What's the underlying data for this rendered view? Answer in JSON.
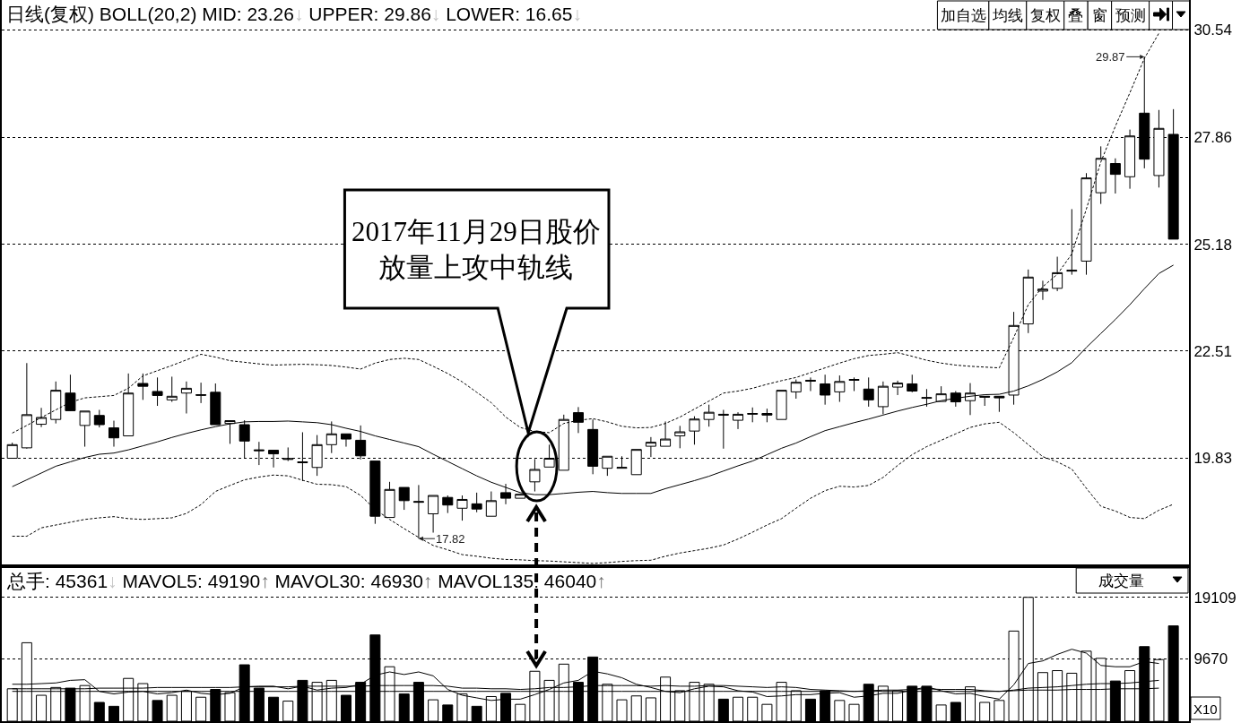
{
  "chart_data": [
    {
      "type": "candlestick",
      "categories": [
        null,
        null,
        null,
        null,
        null,
        null,
        null,
        null,
        null,
        null,
        null,
        null,
        null,
        null,
        null,
        null,
        null,
        null,
        null,
        null,
        null,
        null,
        null,
        null,
        null,
        null,
        null,
        null,
        null,
        null,
        null,
        null,
        null,
        null,
        null,
        null,
        null,
        null,
        null,
        null,
        null,
        null,
        null,
        null,
        null,
        null,
        null,
        null,
        null,
        null,
        null,
        null,
        null,
        null,
        null,
        null,
        null,
        null,
        null,
        null,
        null,
        null,
        null,
        null,
        null,
        null,
        null,
        null,
        null,
        null,
        null,
        null,
        null,
        null,
        null,
        null,
        null,
        null,
        null,
        null,
        null
      ],
      "ohlc": [
        [
          19.83,
          20.22,
          19.83,
          20.17
        ],
        [
          20.09,
          22.21,
          20.07,
          20.92
        ],
        [
          20.68,
          21.09,
          20.61,
          20.85
        ],
        [
          20.8,
          21.75,
          20.7,
          21.53
        ],
        [
          21.46,
          21.92,
          21.01,
          21.02
        ],
        [
          20.65,
          21.01,
          20.12,
          21.01
        ],
        [
          20.9,
          21.04,
          20.6,
          20.67
        ],
        [
          20.59,
          20.77,
          20.12,
          20.34
        ],
        [
          20.39,
          21.95,
          20.39,
          21.46
        ],
        [
          21.7,
          21.95,
          21.29,
          21.63
        ],
        [
          21.5,
          21.85,
          21.14,
          21.4
        ],
        [
          21.29,
          21.87,
          21.24,
          21.38
        ],
        [
          21.46,
          21.75,
          20.95,
          21.58
        ],
        [
          21.4,
          21.72,
          21.21,
          21.42
        ],
        [
          21.48,
          21.7,
          20.67,
          20.67
        ],
        [
          20.7,
          20.77,
          20.19,
          20.77
        ],
        [
          20.67,
          20.78,
          19.83,
          20.26
        ],
        [
          20.04,
          20.24,
          19.66,
          20.02
        ],
        [
          20.03,
          20.03,
          19.6,
          19.94
        ],
        [
          19.8,
          20.1,
          19.76,
          19.82
        ],
        [
          19.74,
          20.48,
          19.26,
          19.72
        ],
        [
          19.6,
          20.41,
          19.39,
          20.17
        ],
        [
          20.17,
          20.75,
          19.96,
          20.44
        ],
        [
          20.44,
          20.44,
          20.12,
          20.31
        ],
        [
          20.28,
          20.65,
          19.8,
          19.89
        ],
        [
          19.76,
          19.76,
          18.19,
          18.38
        ],
        [
          18.35,
          19.24,
          18.35,
          19.05
        ],
        [
          19.1,
          19.1,
          18.54,
          18.77
        ],
        [
          18.75,
          19.16,
          17.82,
          18.73
        ],
        [
          18.44,
          18.9,
          17.97,
          18.9
        ],
        [
          18.85,
          18.9,
          18.46,
          18.66
        ],
        [
          18.58,
          18.9,
          18.27,
          18.8
        ],
        [
          18.69,
          18.97,
          18.48,
          18.56
        ],
        [
          18.38,
          19.0,
          18.38,
          18.77
        ],
        [
          18.97,
          19.19,
          18.68,
          18.83
        ],
        [
          18.83,
          18.93,
          18.83,
          18.93
        ],
        [
          19.24,
          19.81,
          19.0,
          19.55
        ],
        [
          19.61,
          20.17,
          19.61,
          19.83
        ],
        [
          19.53,
          20.92,
          19.53,
          20.8
        ],
        [
          20.97,
          21.11,
          20.46,
          20.73
        ],
        [
          20.55,
          20.8,
          19.43,
          19.63
        ],
        [
          19.58,
          19.88,
          19.39,
          19.88
        ],
        [
          19.58,
          19.88,
          19.58,
          19.6
        ],
        [
          19.42,
          20.05,
          19.42,
          20.05
        ],
        [
          20.13,
          20.36,
          19.86,
          20.23
        ],
        [
          20.13,
          20.75,
          20.13,
          20.31
        ],
        [
          20.39,
          20.64,
          20.08,
          20.49
        ],
        [
          20.51,
          20.88,
          20.17,
          20.81
        ],
        [
          20.8,
          21.17,
          20.62,
          20.98
        ],
        [
          20.93,
          21.04,
          20.07,
          20.91
        ],
        [
          20.78,
          20.98,
          20.56,
          20.93
        ],
        [
          20.93,
          21.1,
          20.73,
          20.95
        ],
        [
          20.95,
          21.07,
          20.73,
          20.91
        ],
        [
          20.8,
          21.53,
          20.8,
          21.53
        ],
        [
          21.49,
          21.8,
          21.32,
          21.73
        ],
        [
          21.78,
          21.85,
          21.51,
          21.76
        ],
        [
          21.69,
          21.92,
          21.17,
          21.41
        ],
        [
          21.49,
          21.9,
          21.24,
          21.75
        ],
        [
          21.78,
          21.85,
          21.51,
          21.8
        ],
        [
          21.56,
          21.85,
          21.12,
          21.29
        ],
        [
          21.12,
          21.75,
          20.93,
          21.63
        ],
        [
          21.61,
          21.77,
          21.41,
          21.71
        ],
        [
          21.69,
          21.92,
          21.48,
          21.51
        ],
        [
          21.35,
          21.56,
          21.12,
          21.33
        ],
        [
          21.25,
          21.63,
          21.25,
          21.44
        ],
        [
          21.46,
          21.51,
          21.12,
          21.24
        ],
        [
          21.27,
          21.71,
          20.91,
          21.46
        ],
        [
          21.38,
          21.38,
          21.14,
          21.36
        ],
        [
          21.38,
          21.38,
          20.99,
          21.34
        ],
        [
          21.41,
          23.49,
          21.17,
          23.15
        ],
        [
          23.19,
          24.55,
          22.96,
          24.36
        ],
        [
          24.01,
          24.27,
          23.79,
          24.06
        ],
        [
          24.08,
          24.87,
          24.01,
          24.47
        ],
        [
          24.51,
          26.06,
          24.42,
          24.53
        ],
        [
          24.76,
          26.96,
          24.42,
          26.84
        ],
        [
          26.47,
          27.63,
          26.19,
          27.33
        ],
        [
          27.2,
          27.33,
          26.45,
          26.93
        ],
        [
          26.87,
          28.05,
          26.57,
          27.89
        ],
        [
          28.46,
          29.87,
          27.08,
          27.31
        ],
        [
          26.9,
          28.54,
          26.6,
          28.08
        ],
        [
          27.93,
          28.56,
          25.31,
          25.31
        ]
      ],
      "series": [
        {
          "type": "line",
          "color": "#000000",
          "line_style": "solid",
          "values": [
            19.12,
            19.29,
            19.46,
            19.63,
            19.74,
            19.85,
            19.93,
            19.96,
            20.04,
            20.14,
            20.24,
            20.35,
            20.45,
            20.54,
            20.62,
            20.69,
            20.74,
            20.75,
            20.75,
            20.76,
            20.74,
            20.72,
            20.67,
            20.58,
            20.5,
            20.39,
            20.3,
            20.21,
            20.12,
            19.93,
            19.75,
            19.57,
            19.39,
            19.23,
            19.1,
            18.97,
            18.92,
            18.92,
            18.95,
            18.98,
            19.0,
            18.97,
            18.95,
            18.95,
            18.95,
            19.07,
            19.17,
            19.27,
            19.38,
            19.51,
            19.64,
            19.76,
            19.92,
            20.08,
            20.21,
            20.37,
            20.52,
            20.62,
            20.72,
            20.81,
            20.91,
            21.01,
            21.1,
            21.18,
            21.27,
            21.33,
            21.38,
            21.42,
            21.43,
            21.51,
            21.64,
            21.8,
            21.99,
            22.22,
            22.6,
            22.95,
            23.3,
            23.67,
            24.07,
            24.45,
            24.66
          ]
        },
        {
          "type": "line",
          "color": "#000000",
          "line_style": "dashed",
          "values": [
            20.46,
            20.65,
            20.85,
            21.04,
            21.23,
            21.34,
            21.37,
            21.4,
            21.58,
            21.89,
            22.02,
            22.15,
            22.29,
            22.43,
            22.36,
            22.27,
            22.23,
            22.19,
            22.16,
            22.17,
            22.18,
            22.17,
            22.15,
            22.11,
            22.06,
            22.21,
            22.3,
            22.33,
            22.3,
            22.13,
            21.95,
            21.74,
            21.48,
            21.22,
            20.86,
            20.6,
            20.5,
            20.47,
            20.7,
            20.78,
            20.82,
            20.74,
            20.63,
            20.59,
            20.6,
            20.7,
            20.86,
            21.06,
            21.26,
            21.46,
            21.51,
            21.58,
            21.68,
            21.77,
            21.85,
            21.97,
            22.09,
            22.21,
            22.32,
            22.4,
            22.43,
            22.47,
            22.38,
            22.28,
            22.21,
            22.16,
            22.13,
            22.11,
            22.09,
            22.85,
            23.67,
            24.12,
            24.43,
            24.94,
            26.06,
            27.24,
            28.13,
            28.97,
            29.83,
            30.46,
            null
          ]
        },
        {
          "type": "line",
          "color": "#000000",
          "line_style": "dashed",
          "values": [
            17.88,
            17.88,
            18.09,
            18.16,
            18.23,
            18.3,
            18.34,
            18.37,
            18.32,
            18.3,
            18.32,
            18.34,
            18.45,
            18.67,
            19.0,
            19.15,
            19.29,
            19.36,
            19.41,
            19.39,
            19.28,
            19.18,
            19.17,
            19.12,
            18.9,
            18.55,
            18.3,
            18.07,
            17.85,
            17.65,
            17.54,
            17.42,
            17.38,
            17.33,
            17.3,
            17.29,
            17.27,
            17.26,
            17.24,
            17.22,
            17.2,
            17.22,
            17.25,
            17.27,
            17.28,
            17.38,
            17.46,
            17.52,
            17.58,
            17.66,
            17.81,
            17.98,
            18.16,
            18.32,
            18.58,
            18.83,
            19.02,
            19.13,
            19.11,
            19.15,
            19.35,
            19.65,
            19.92,
            20.12,
            20.28,
            20.44,
            20.6,
            20.69,
            20.73,
            20.47,
            20.17,
            19.87,
            19.74,
            19.56,
            19.08,
            18.63,
            18.51,
            18.35,
            18.32,
            18.53,
            18.68
          ]
        }
      ],
      "ylim": [
        17.13,
        31.29
      ],
      "yticks": [
        19.83,
        22.51,
        25.18,
        27.86,
        30.54
      ],
      "grid": "y",
      "tick_labels": "y",
      "annotations": [
        "日线(复权) BOLL(20,2) MID: 23.26↓ UPPER: 29.86↓ LOWER: 16.65↓",
        "2017年11月29日股价放量上攻中轨线",
        "29.87",
        "17.82",
        "加自选",
        "均线",
        "复权",
        "叠",
        "窗",
        "预测"
      ]
    },
    {
      "type": "bar",
      "categories": [
        null,
        null,
        null,
        null,
        null,
        null,
        null,
        null,
        null,
        null,
        null,
        null,
        null,
        null,
        null,
        null,
        null,
        null,
        null,
        null,
        null,
        null,
        null,
        null,
        null,
        null,
        null,
        null,
        null,
        null,
        null,
        null,
        null,
        null,
        null,
        null,
        null,
        null,
        null,
        null,
        null,
        null,
        null,
        null,
        null,
        null,
        null,
        null,
        null,
        null,
        null,
        null,
        null,
        null,
        null,
        null,
        null,
        null,
        null,
        null,
        null,
        null,
        null,
        null,
        null,
        null,
        null,
        null,
        null,
        null,
        null,
        null,
        null,
        null,
        null,
        null,
        null,
        null,
        null,
        null,
        null
      ],
      "series": [
        {
          "type": "bar",
          "values": [
            5000,
            12100,
            4000,
            5200,
            5100,
            5500,
            2900,
            2300,
            6600,
            5800,
            3200,
            4000,
            4600,
            3700,
            4900,
            4400,
            8700,
            5100,
            3700,
            3100,
            6300,
            6000,
            6300,
            4000,
            6000,
            13300,
            8400,
            4200,
            6000,
            3300,
            2500,
            4200,
            2300,
            3800,
            4300,
            2600,
            7700,
            6300,
            8800,
            6000,
            9900,
            5700,
            3300,
            3900,
            3600,
            6800,
            4700,
            6000,
            5700,
            3400,
            3700,
            3700,
            2600,
            6000,
            4700,
            3400,
            4700,
            3200,
            2600,
            5700,
            5400,
            4700,
            5400,
            5400,
            2500,
            2900,
            5300,
            2900,
            3200,
            13900,
            19100,
            7500,
            7800,
            7400,
            10800,
            9700,
            6200,
            7800,
            11500,
            9500,
            14700
          ],
          "colors": [
            "#ffffff",
            "#ffffff",
            "#ffffff",
            "#ffffff",
            "#000000",
            "#ffffff",
            "#000000",
            "#000000",
            "#ffffff",
            "#ffffff",
            "#000000",
            "#ffffff",
            "#ffffff",
            "#ffffff",
            "#000000",
            "#ffffff",
            "#000000",
            "#000000",
            "#000000",
            "#ffffff",
            "#000000",
            "#ffffff",
            "#ffffff",
            "#000000",
            "#000000",
            "#000000",
            "#ffffff",
            "#000000",
            "#000000",
            "#ffffff",
            "#000000",
            "#ffffff",
            "#000000",
            "#ffffff",
            "#000000",
            "#ffffff",
            "#ffffff",
            "#ffffff",
            "#ffffff",
            "#000000",
            "#000000",
            "#ffffff",
            "#ffffff",
            "#ffffff",
            "#ffffff",
            "#ffffff",
            "#ffffff",
            "#ffffff",
            "#ffffff",
            "#000000",
            "#ffffff",
            "#ffffff",
            "#ffffff",
            "#ffffff",
            "#ffffff",
            "#000000",
            "#000000",
            "#ffffff",
            "#ffffff",
            "#000000",
            "#ffffff",
            "#ffffff",
            "#000000",
            "#000000",
            "#ffffff",
            "#000000",
            "#ffffff",
            "#ffffff",
            "#ffffff",
            "#ffffff",
            "#ffffff",
            "#ffffff",
            "#ffffff",
            "#ffffff",
            "#ffffff",
            "#ffffff",
            "#000000",
            "#ffffff",
            "#000000",
            "#ffffff",
            "#000000"
          ]
        },
        {
          "type": "line",
          "color": "#000000",
          "values": [
            5700,
            5700,
            5800,
            5900,
            6300,
            6400,
            4600,
            4200,
            4500,
            4600,
            4200,
            4400,
            4800,
            4300,
            4100,
            4300,
            5300,
            5400,
            5400,
            5000,
            5400,
            4800,
            5100,
            5200,
            5700,
            7100,
            7600,
            7200,
            7600,
            7000,
            4900,
            4000,
            3600,
            3200,
            3400,
            3400,
            4100,
            4900,
            5900,
            6300,
            7700,
            7300,
            6700,
            5700,
            5200,
            4600,
            4400,
            5000,
            5400,
            5300,
            4700,
            4500,
            3800,
            3900,
            4100,
            4100,
            4300,
            4400,
            3700,
            3900,
            4300,
            4300,
            4800,
            5300,
            4700,
            4200,
            4300,
            3800,
            3400,
            5600,
            8900,
            9300,
            10300,
            11100,
            10500,
            8600,
            8400,
            8400,
            9200,
            8900,
            null
          ]
        },
        {
          "type": "line",
          "color": "#000000",
          "values": [
            5000,
            5000,
            5000,
            5000,
            5000,
            5000,
            5100,
            5100,
            5100,
            5100,
            5200,
            5200,
            5200,
            5200,
            5200,
            5200,
            5300,
            5300,
            5300,
            5300,
            5400,
            5400,
            5400,
            5400,
            5400,
            5500,
            5500,
            5500,
            5500,
            5500,
            5400,
            5100,
            5100,
            5000,
            5000,
            4900,
            5000,
            5200,
            5200,
            5300,
            5500,
            5500,
            5500,
            5500,
            5400,
            5500,
            5400,
            5400,
            5500,
            5500,
            5400,
            5300,
            5200,
            5300,
            5200,
            4900,
            4800,
            4700,
            4600,
            4700,
            4800,
            4800,
            4900,
            5000,
            4900,
            4900,
            4900,
            4700,
            4600,
            4800,
            5100,
            5200,
            5300,
            5500,
            5700,
            5800,
            5800,
            5900,
            6100,
            6300,
            null
          ]
        },
        {
          "type": "line",
          "color": "#000000",
          "values": [
            4600,
            4600,
            4600,
            4600,
            4600,
            4600,
            4600,
            4600,
            4600,
            4600,
            4600,
            4600,
            4600,
            4600,
            4600,
            4600,
            4600,
            4600,
            4600,
            4600,
            4600,
            4600,
            4600,
            4600,
            4600,
            4600,
            4600,
            4600,
            4600,
            4600,
            4600,
            4600,
            4600,
            4600,
            4600,
            4600,
            4600,
            4600,
            4600,
            4600,
            4600,
            4600,
            4600,
            4600,
            4600,
            4600,
            4600,
            4600,
            4600,
            4600,
            4600,
            4600,
            4600,
            4600,
            4600,
            4600,
            4600,
            4600,
            4600,
            4600,
            4600,
            4600,
            4600,
            4600,
            4600,
            4600,
            4600,
            4600,
            4600,
            4700,
            4800,
            4800,
            4800,
            4900,
            4900,
            4900,
            5000,
            5000,
            5000,
            5100,
            null
          ]
        }
      ],
      "ylim": [
        0,
        23900
      ],
      "yticks": [
        9670,
        19109
      ],
      "grid": "y",
      "tick_labels": "y",
      "annotations": [
        "总手: 45361↓ MAVOL5: 49190↑ MAVOL30: 46930↑ MAVOL135: 46040↑",
        "成交量",
        "X10"
      ]
    }
  ]
}
